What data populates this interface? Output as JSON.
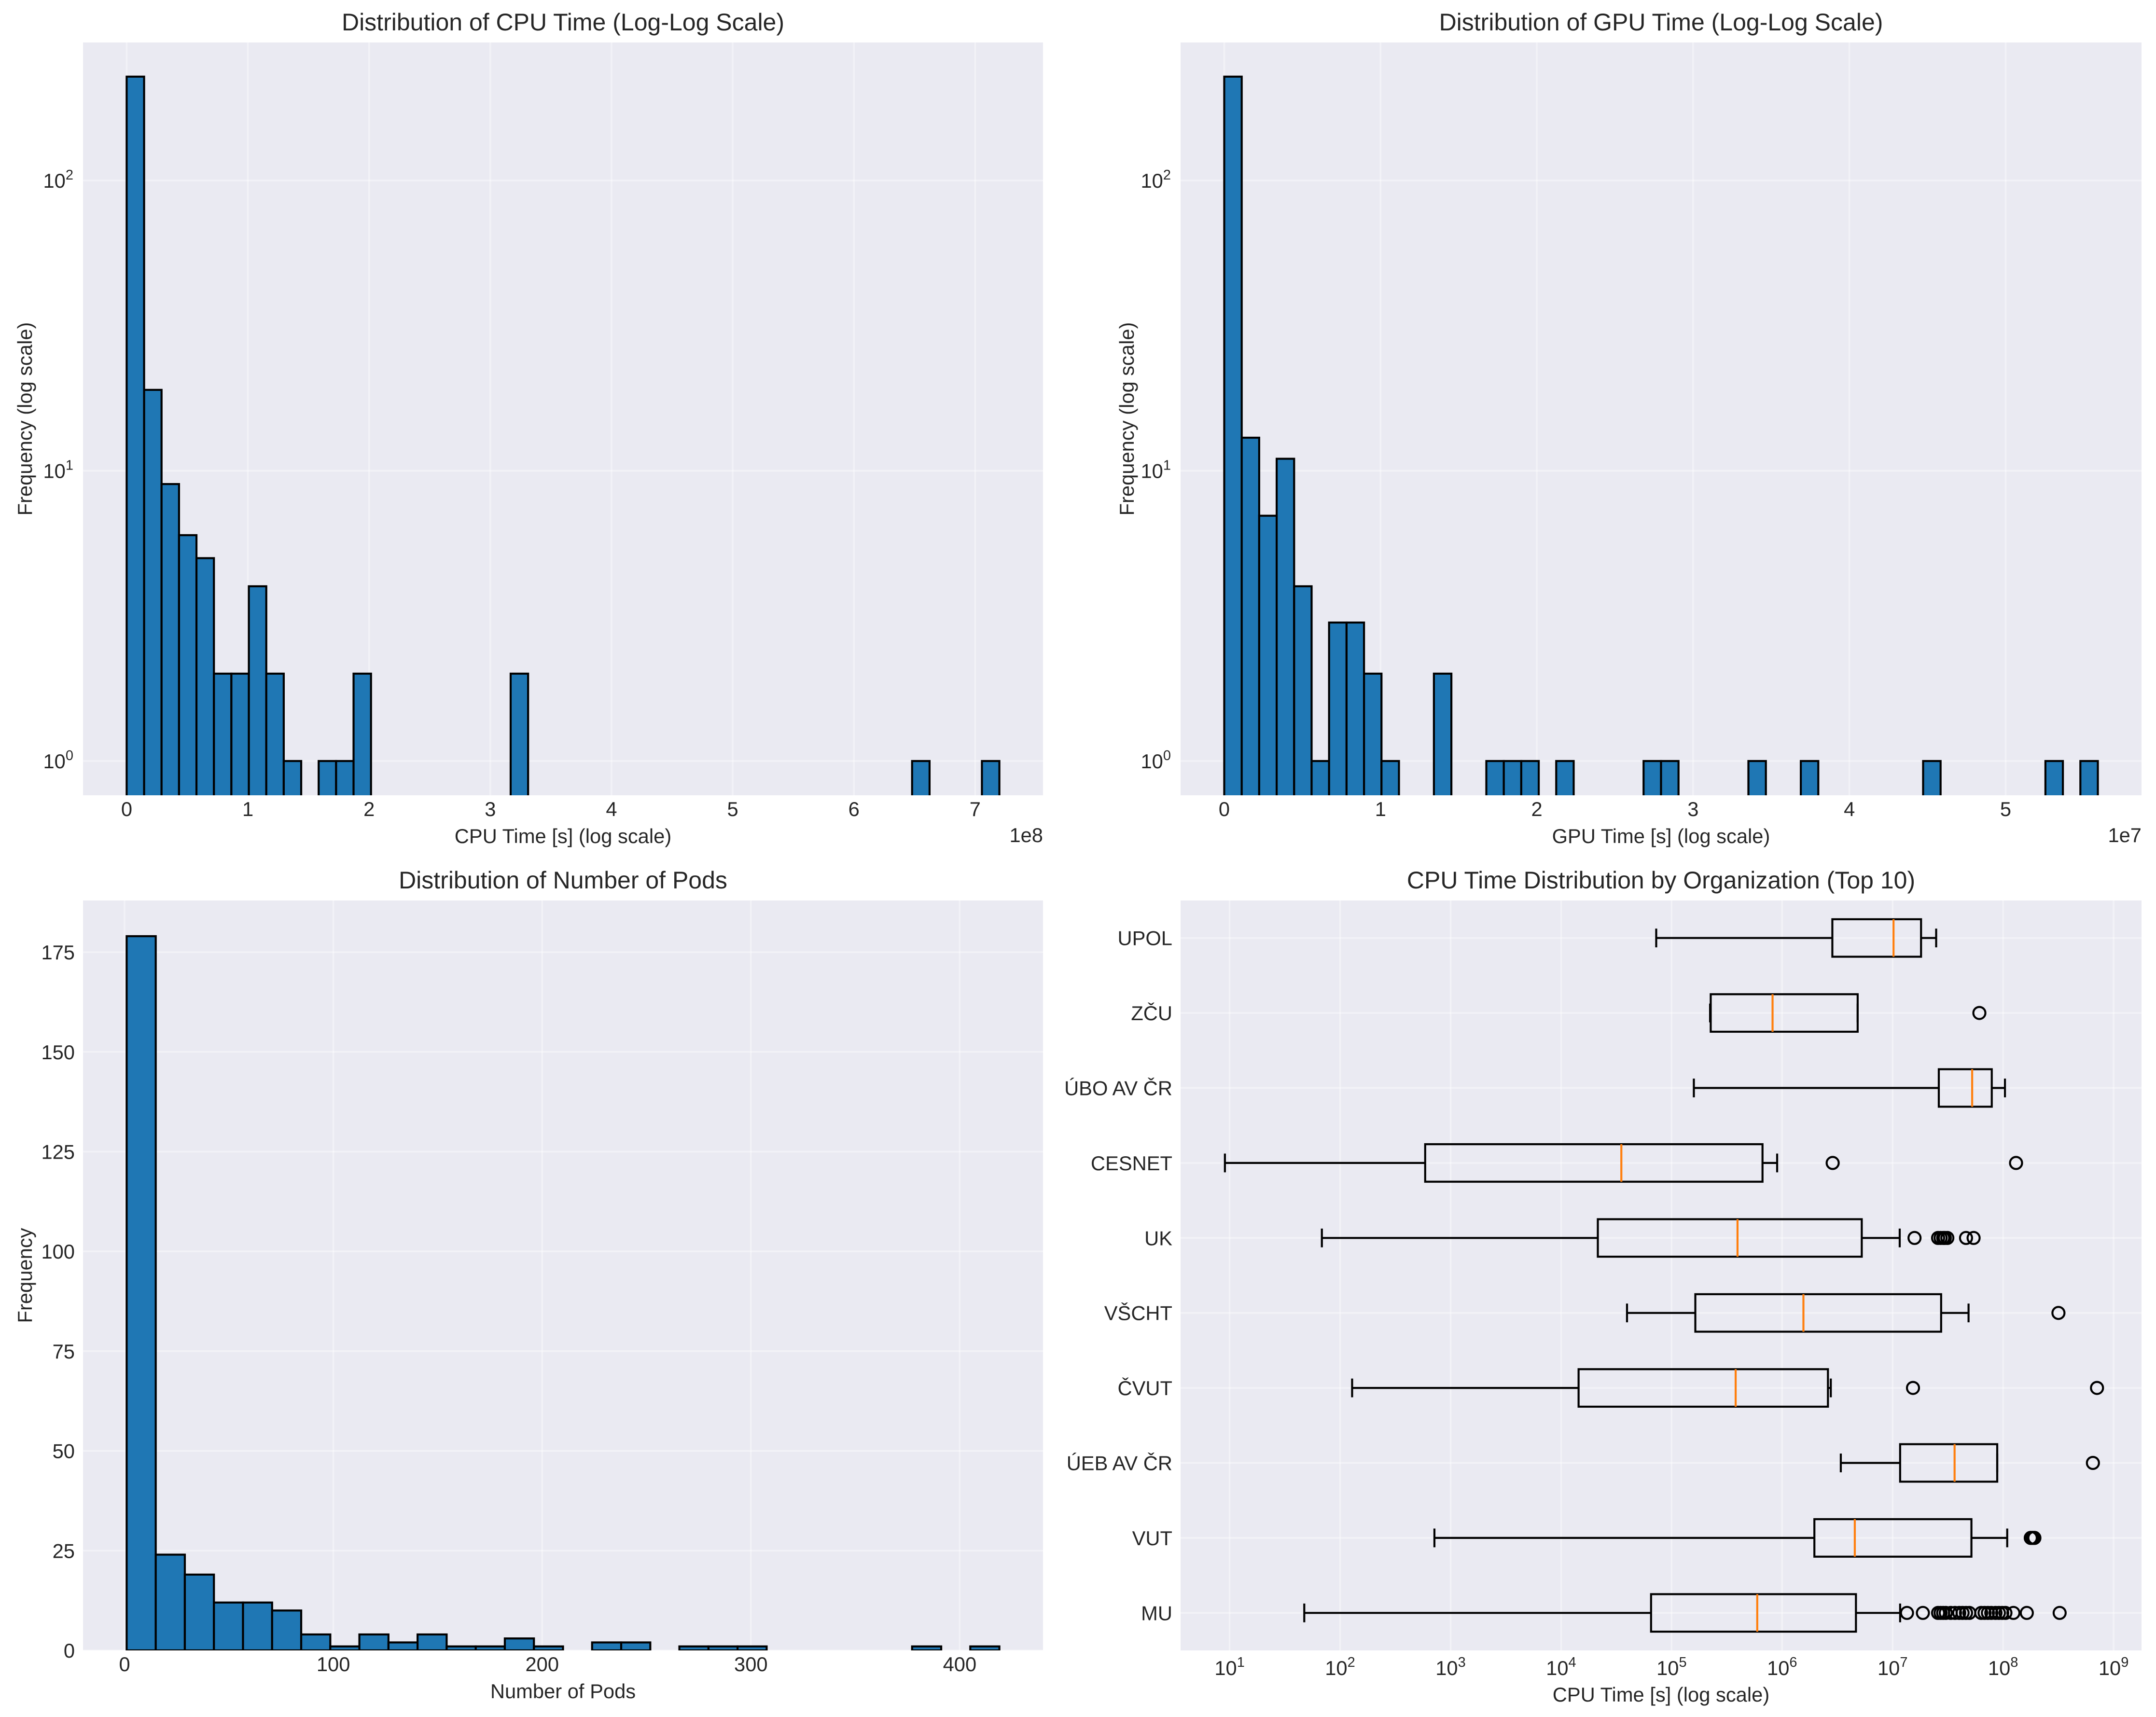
{
  "style": {
    "figure_background": "#ffffff",
    "axes_background": "#eaeaf2",
    "grid_color": "#ffffff",
    "text_color": "#262626",
    "bar_fill": "#1f77b4",
    "edge_color": "#000000",
    "median_color": "#ff7f0e"
  },
  "chart_data": [
    {
      "id": "cpu-time-histogram",
      "type": "bar",
      "subtype": "histogram",
      "title": "Distribution of CPU Time (Log-Log Scale)",
      "xlabel": "CPU Time [s] (log scale)",
      "ylabel": "Frequency (log scale)",
      "x_offset_text": "1e8",
      "xscale": "linear",
      "yscale": "log",
      "bin_range": [
        0,
        720000000
      ],
      "bin_count": 50,
      "counts": [
        228,
        19,
        9,
        6,
        5,
        2,
        2,
        4,
        2,
        1,
        0,
        1,
        1,
        2,
        0,
        0,
        0,
        0,
        0,
        0,
        0,
        0,
        2,
        0,
        0,
        0,
        0,
        0,
        0,
        0,
        0,
        0,
        0,
        0,
        0,
        0,
        0,
        0,
        0,
        0,
        0,
        0,
        0,
        0,
        0,
        1,
        0,
        0,
        0,
        1
      ],
      "xlim": [
        -36000000,
        756000000
      ],
      "ylim": [
        0.762,
        299
      ],
      "xticks": [
        {
          "value": 0,
          "label": "0"
        },
        {
          "value": 100000000,
          "label": "1"
        },
        {
          "value": 200000000,
          "label": "2"
        },
        {
          "value": 300000000,
          "label": "3"
        },
        {
          "value": 400000000,
          "label": "4"
        },
        {
          "value": 500000000,
          "label": "5"
        },
        {
          "value": 600000000,
          "label": "6"
        },
        {
          "value": 700000000,
          "label": "7"
        }
      ],
      "yticks": [
        {
          "value": 1,
          "base": "10",
          "exp": "0"
        },
        {
          "value": 10,
          "base": "10",
          "exp": "1"
        },
        {
          "value": 100,
          "base": "10",
          "exp": "2"
        }
      ],
      "grid": true,
      "legend": null
    },
    {
      "id": "gpu-time-histogram",
      "type": "bar",
      "subtype": "histogram",
      "title": "Distribution of GPU Time (Log-Log Scale)",
      "xlabel": "GPU Time [s] (log scale)",
      "ylabel": "Frequency (log scale)",
      "x_offset_text": "1e7",
      "xscale": "linear",
      "yscale": "log",
      "bin_range": [
        0,
        55900000
      ],
      "bin_count": 50,
      "counts": [
        228,
        13,
        7,
        11,
        4,
        1,
        3,
        3,
        2,
        1,
        0,
        0,
        2,
        0,
        0,
        1,
        1,
        1,
        0,
        1,
        0,
        0,
        0,
        0,
        1,
        1,
        0,
        0,
        0,
        0,
        1,
        0,
        0,
        1,
        0,
        0,
        0,
        0,
        0,
        0,
        1,
        0,
        0,
        0,
        0,
        0,
        0,
        1,
        0,
        1
      ],
      "xlim": [
        -2795000,
        58695000
      ],
      "ylim": [
        0.762,
        299
      ],
      "xticks": [
        {
          "value": 0,
          "label": "0"
        },
        {
          "value": 10000000,
          "label": "1"
        },
        {
          "value": 20000000,
          "label": "2"
        },
        {
          "value": 30000000,
          "label": "3"
        },
        {
          "value": 40000000,
          "label": "4"
        },
        {
          "value": 50000000,
          "label": "5"
        }
      ],
      "yticks": [
        {
          "value": 1,
          "base": "10",
          "exp": "0"
        },
        {
          "value": 10,
          "base": "10",
          "exp": "1"
        },
        {
          "value": 100,
          "base": "10",
          "exp": "2"
        }
      ],
      "grid": true,
      "legend": null
    },
    {
      "id": "pods-histogram",
      "type": "bar",
      "subtype": "histogram",
      "title": "Distribution of Number of Pods",
      "xlabel": "Number of Pods",
      "ylabel": "Frequency",
      "xscale": "linear",
      "yscale": "linear",
      "bin_range": [
        1,
        419
      ],
      "bin_count": 30,
      "counts": [
        179,
        24,
        19,
        12,
        12,
        10,
        4,
        1,
        4,
        2,
        4,
        1,
        1,
        3,
        1,
        0,
        2,
        2,
        0,
        1,
        1,
        1,
        0,
        0,
        0,
        0,
        0,
        1,
        0,
        1
      ],
      "xlim": [
        -19.9,
        439.9
      ],
      "ylim": [
        0,
        187.95
      ],
      "xticks": [
        {
          "value": 0,
          "label": "0"
        },
        {
          "value": 100,
          "label": "100"
        },
        {
          "value": 200,
          "label": "200"
        },
        {
          "value": 300,
          "label": "300"
        },
        {
          "value": 400,
          "label": "400"
        }
      ],
      "yticks": [
        {
          "value": 0,
          "label": "0"
        },
        {
          "value": 25,
          "label": "25"
        },
        {
          "value": 50,
          "label": "50"
        },
        {
          "value": 75,
          "label": "75"
        },
        {
          "value": 100,
          "label": "100"
        },
        {
          "value": 125,
          "label": "125"
        },
        {
          "value": 150,
          "label": "150"
        },
        {
          "value": 175,
          "label": "175"
        }
      ],
      "grid": true,
      "legend": null
    },
    {
      "id": "cpu-time-by-organization",
      "type": "boxplot",
      "orientation": "horizontal",
      "title": "CPU Time Distribution by Organization (Top 10)",
      "xlabel": "CPU Time [s] (log scale)",
      "ylabel": "",
      "xscale": "log",
      "yscale": "linear",
      "xlim": [
        3.6,
        1790000000
      ],
      "ylim": [
        0.5,
        10.5
      ],
      "xticks": [
        {
          "value": 10,
          "base": "10",
          "exp": "1"
        },
        {
          "value": 100,
          "base": "10",
          "exp": "2"
        },
        {
          "value": 1000,
          "base": "10",
          "exp": "3"
        },
        {
          "value": 10000,
          "base": "10",
          "exp": "4"
        },
        {
          "value": 100000,
          "base": "10",
          "exp": "5"
        },
        {
          "value": 1000000,
          "base": "10",
          "exp": "6"
        },
        {
          "value": 10000000,
          "base": "10",
          "exp": "7"
        },
        {
          "value": 100000000,
          "base": "10",
          "exp": "8"
        },
        {
          "value": 1000000000,
          "base": "10",
          "exp": "9"
        }
      ],
      "boxes": [
        {
          "label": "UPOL",
          "whislo": 72600.0,
          "q1": 2850000.0,
          "median": 10200000.0,
          "q3": 18100000.0,
          "whishi": 24800000.0,
          "fliers": []
        },
        {
          "label": "ZČU",
          "whislo": 223000.0,
          "q1": 226000.0,
          "median": 820000.0,
          "q3": 4830000.0,
          "whishi": 4830000.0,
          "fliers": [
            61000000.0
          ]
        },
        {
          "label": "ÚBO AV ČR",
          "whislo": 159000.0,
          "q1": 26200000.0,
          "median": 52500000.0,
          "q3": 79000000.0,
          "whishi": 104000000.0,
          "fliers": []
        },
        {
          "label": "CESNET",
          "whislo": 9.07,
          "q1": 589,
          "median": 35100.0,
          "q3": 665000.0,
          "whishi": 902000.0,
          "fliers": [
            2870000.0,
            131000000.0
          ]
        },
        {
          "label": "UK",
          "whislo": 68.4,
          "q1": 21500.0,
          "median": 395000.0,
          "q3": 5260000.0,
          "whishi": 11600000.0,
          "fliers": [
            15800000.0,
            25800000.0,
            27200000.0,
            28700000.0,
            29700000.0,
            31300000.0,
            46200000.0,
            54100000.0
          ]
        },
        {
          "label": "VŠCHT",
          "whislo": 39500.0,
          "q1": 164000.0,
          "median": 1560000.0,
          "q3": 27500000.0,
          "whishi": 48700000.0,
          "fliers": [
            317000000.0
          ]
        },
        {
          "label": "ČVUT",
          "whislo": 128.5,
          "q1": 14400.0,
          "median": 380000.0,
          "q3": 2600000.0,
          "whishi": 2760000.0,
          "fliers": [
            15300000.0,
            708000000.0
          ]
        },
        {
          "label": "ÚEB AV ČR",
          "whislo": 3400000.0,
          "q1": 11700000.0,
          "median": 36400000.0,
          "q3": 88500000.0,
          "whishi": 88500000.0,
          "fliers": [
            650000000.0
          ]
        },
        {
          "label": "VUT",
          "whislo": 714,
          "q1": 1960000.0,
          "median": 4550000.0,
          "q3": 51700000.0,
          "whishi": 109000000.0,
          "fliers": [
            178000000.0,
            185000000.0,
            192000000.0
          ]
        },
        {
          "label": "MU",
          "whislo": 47.4,
          "q1": 65200.0,
          "median": 596000.0,
          "q3": 4660000.0,
          "whishi": 11700000.0,
          "fliers": [
            13500000.0,
            18800000.0,
            25800000.0,
            27200000.0,
            28700000.0,
            30300000.0,
            33600000.0,
            36700000.0,
            40100000.0,
            43000000.0,
            46200000.0,
            49500000.0,
            63400000.0,
            68000000.0,
            72900000.0,
            78200000.0,
            85400000.0,
            91600000.0,
            98200000.0,
            105000000.0,
            124000000.0,
            164000000.0,
            325000000.0
          ]
        }
      ],
      "grid": true,
      "legend": null
    }
  ]
}
